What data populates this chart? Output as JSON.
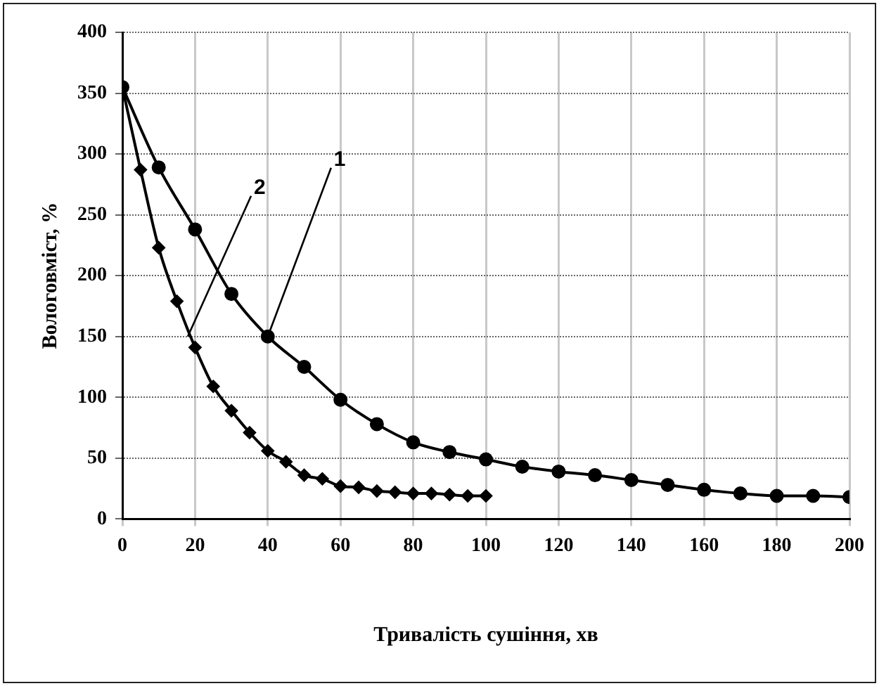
{
  "chart_data": {
    "type": "line",
    "xlabel": "Тривалість сушіння, хв",
    "ylabel": "Вологовміст, %",
    "xlim": [
      0,
      200
    ],
    "xticks": [
      0,
      20,
      40,
      60,
      80,
      100,
      120,
      140,
      160,
      180,
      200
    ],
    "ylim": [
      0,
      400
    ],
    "yticks": [
      0,
      50,
      100,
      150,
      200,
      250,
      300,
      350,
      400
    ],
    "grid": true,
    "legend": false,
    "series": [
      {
        "color": "#000000",
        "marker": "diamond",
        "x": [
          0,
          5,
          10,
          15,
          20,
          25,
          30,
          35,
          40,
          45,
          50,
          55,
          60,
          65,
          70,
          75,
          80,
          85,
          90,
          95,
          100
        ],
        "values": [
          355,
          287,
          223,
          179,
          141,
          109,
          89,
          71,
          56,
          47,
          36,
          33,
          27,
          26,
          23,
          22,
          21,
          21,
          20,
          19,
          19
        ]
      },
      {
        "color": "#000000",
        "marker": "circle",
        "x": [
          0,
          10,
          20,
          30,
          40,
          50,
          60,
          70,
          80,
          90,
          100,
          110,
          120,
          130,
          140,
          150,
          160,
          170,
          180,
          190,
          200
        ],
        "values": [
          355,
          289,
          238,
          185,
          150,
          125,
          98,
          78,
          63,
          55,
          49,
          43,
          39,
          36,
          32,
          28,
          24,
          21,
          19,
          19,
          18
        ]
      }
    ],
    "annotations": [
      {
        "text": "1",
        "x": 40,
        "y": 150
      },
      {
        "text": "2",
        "x": 18,
        "y": 150
      }
    ]
  }
}
